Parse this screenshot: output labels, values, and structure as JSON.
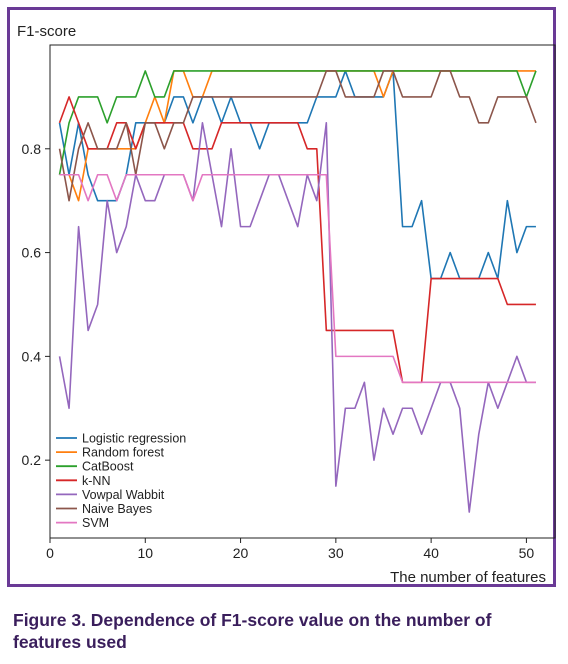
{
  "caption": "Figure 3. Dependence of F1-score value on the number of features used",
  "chart_data": {
    "type": "line",
    "ylabel": "F1-score",
    "xlabel": "The number of features",
    "xlim": [
      0,
      53
    ],
    "ylim": [
      0.05,
      1.0
    ],
    "xticks": [
      0,
      10,
      20,
      30,
      40,
      50
    ],
    "yticks": [
      0.2,
      0.4,
      0.6,
      0.8
    ],
    "grid": false,
    "legend": "lower-left",
    "x": [
      1,
      2,
      3,
      4,
      5,
      6,
      7,
      8,
      9,
      10,
      11,
      12,
      13,
      14,
      15,
      16,
      17,
      18,
      19,
      20,
      21,
      22,
      23,
      24,
      25,
      26,
      27,
      28,
      29,
      30,
      31,
      32,
      33,
      34,
      35,
      36,
      37,
      38,
      39,
      40,
      41,
      42,
      43,
      44,
      45,
      46,
      47,
      48,
      49,
      50,
      51
    ],
    "series": [
      {
        "name": "Logistic regression",
        "color": "#1f77b4",
        "values": [
          0.85,
          0.75,
          0.85,
          0.75,
          0.7,
          0.7,
          0.7,
          0.75,
          0.85,
          0.85,
          0.85,
          0.85,
          0.9,
          0.9,
          0.85,
          0.9,
          0.9,
          0.85,
          0.9,
          0.85,
          0.85,
          0.8,
          0.85,
          0.85,
          0.85,
          0.85,
          0.85,
          0.9,
          0.9,
          0.9,
          0.95,
          0.9,
          0.9,
          0.9,
          0.9,
          0.95,
          0.65,
          0.65,
          0.7,
          0.55,
          0.55,
          0.6,
          0.55,
          0.55,
          0.55,
          0.6,
          0.55,
          0.7,
          0.6,
          0.65,
          0.65
        ]
      },
      {
        "name": "Random forest",
        "color": "#ff7f0e",
        "values": [
          0.75,
          0.75,
          0.7,
          0.8,
          0.8,
          0.8,
          0.8,
          0.8,
          0.8,
          0.85,
          0.9,
          0.85,
          0.95,
          0.95,
          0.9,
          0.9,
          0.95,
          0.95,
          0.95,
          0.95,
          0.95,
          0.95,
          0.95,
          0.95,
          0.95,
          0.95,
          0.95,
          0.95,
          0.95,
          0.95,
          0.95,
          0.95,
          0.95,
          0.95,
          0.9,
          0.95,
          0.95,
          0.95,
          0.95,
          0.95,
          0.95,
          0.95,
          0.95,
          0.95,
          0.95,
          0.95,
          0.95,
          0.95,
          0.95,
          0.95,
          0.95
        ]
      },
      {
        "name": "CatBoost",
        "color": "#2ca02c",
        "values": [
          0.75,
          0.85,
          0.9,
          0.9,
          0.9,
          0.85,
          0.9,
          0.9,
          0.9,
          0.95,
          0.9,
          0.9,
          0.95,
          0.95,
          0.95,
          0.95,
          0.95,
          0.95,
          0.95,
          0.95,
          0.95,
          0.95,
          0.95,
          0.95,
          0.95,
          0.95,
          0.95,
          0.95,
          0.95,
          0.95,
          0.95,
          0.95,
          0.95,
          0.95,
          0.95,
          0.95,
          0.95,
          0.95,
          0.95,
          0.95,
          0.95,
          0.95,
          0.95,
          0.95,
          0.95,
          0.95,
          0.95,
          0.95,
          0.95,
          0.9,
          0.95
        ]
      },
      {
        "name": "k-NN",
        "color": "#d62728",
        "values": [
          0.85,
          0.9,
          0.85,
          0.8,
          0.8,
          0.8,
          0.85,
          0.85,
          0.8,
          0.85,
          0.85,
          0.85,
          0.85,
          0.85,
          0.8,
          0.8,
          0.8,
          0.85,
          0.85,
          0.85,
          0.85,
          0.85,
          0.85,
          0.85,
          0.85,
          0.85,
          0.8,
          0.8,
          0.45,
          0.45,
          0.45,
          0.45,
          0.45,
          0.45,
          0.45,
          0.45,
          0.35,
          0.35,
          0.35,
          0.55,
          0.55,
          0.55,
          0.55,
          0.55,
          0.55,
          0.55,
          0.55,
          0.5,
          0.5,
          0.5,
          0.5
        ]
      },
      {
        "name": "Vowpal Wabbit",
        "color": "#9467bd",
        "values": [
          0.4,
          0.3,
          0.65,
          0.45,
          0.5,
          0.7,
          0.6,
          0.65,
          0.75,
          0.7,
          0.7,
          0.75,
          0.75,
          0.75,
          0.7,
          0.85,
          0.75,
          0.65,
          0.8,
          0.65,
          0.65,
          0.7,
          0.75,
          0.75,
          0.7,
          0.65,
          0.75,
          0.7,
          0.85,
          0.15,
          0.3,
          0.3,
          0.35,
          0.2,
          0.3,
          0.25,
          0.3,
          0.3,
          0.25,
          0.3,
          0.35,
          0.35,
          0.3,
          0.1,
          0.25,
          0.35,
          0.3,
          0.35,
          0.4,
          0.35,
          0.35
        ]
      },
      {
        "name": "Naive Bayes",
        "color": "#8c564b",
        "values": [
          0.8,
          0.7,
          0.8,
          0.85,
          0.8,
          0.8,
          0.8,
          0.85,
          0.75,
          0.85,
          0.85,
          0.8,
          0.85,
          0.85,
          0.9,
          0.9,
          0.9,
          0.9,
          0.9,
          0.9,
          0.9,
          0.9,
          0.9,
          0.9,
          0.9,
          0.9,
          0.9,
          0.9,
          0.95,
          0.95,
          0.9,
          0.9,
          0.9,
          0.9,
          0.95,
          0.95,
          0.9,
          0.9,
          0.9,
          0.9,
          0.95,
          0.95,
          0.9,
          0.9,
          0.85,
          0.85,
          0.9,
          0.9,
          0.9,
          0.9,
          0.85
        ]
      },
      {
        "name": "SVM",
        "color": "#e377c2",
        "values": [
          0.75,
          0.75,
          0.75,
          0.7,
          0.75,
          0.75,
          0.7,
          0.75,
          0.75,
          0.75,
          0.75,
          0.75,
          0.75,
          0.75,
          0.7,
          0.75,
          0.75,
          0.75,
          0.75,
          0.75,
          0.75,
          0.75,
          0.75,
          0.75,
          0.75,
          0.75,
          0.75,
          0.75,
          0.75,
          0.4,
          0.4,
          0.4,
          0.4,
          0.4,
          0.4,
          0.4,
          0.35,
          0.35,
          0.35,
          0.35,
          0.35,
          0.35,
          0.35,
          0.35,
          0.35,
          0.35,
          0.35,
          0.35,
          0.35,
          0.35,
          0.35
        ]
      }
    ]
  }
}
